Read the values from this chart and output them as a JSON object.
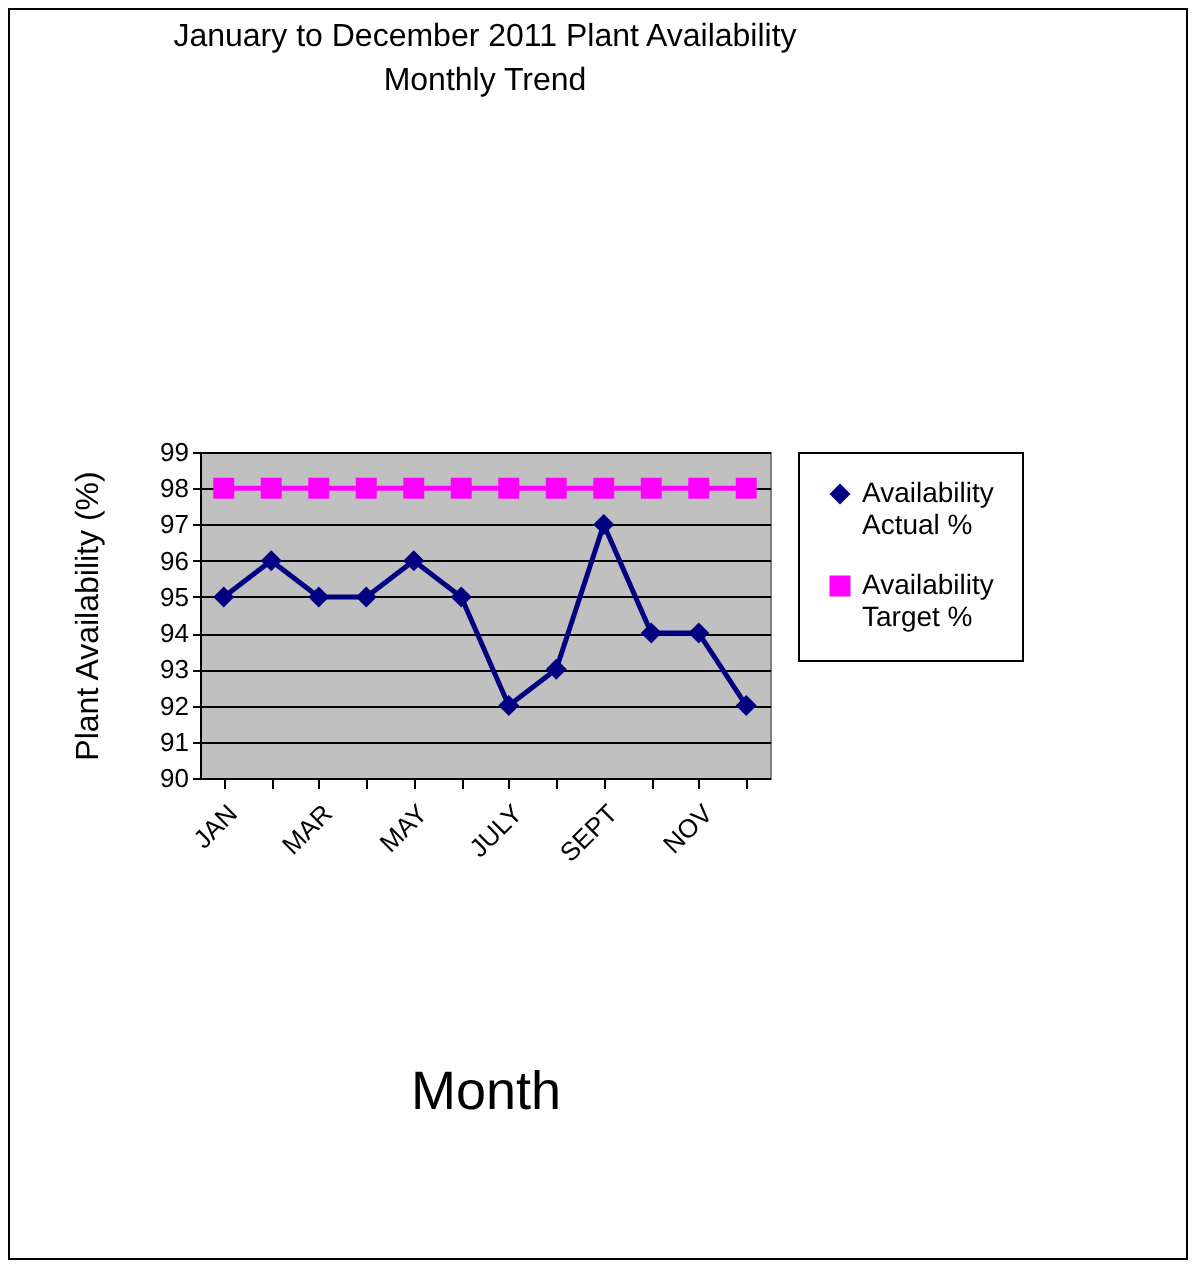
{
  "chart_data": {
    "type": "line",
    "title": [
      "January to December 2011 Plant Availability",
      "Monthly Trend"
    ],
    "xlabel": "Month",
    "ylabel": "Plant Availability (%)",
    "categories": [
      "JAN",
      null,
      "MAR",
      null,
      "MAY",
      null,
      "JULY",
      null,
      "SEPT",
      null,
      "NOV",
      null
    ],
    "series": [
      {
        "name": "Availability Actual %",
        "color": "#000080",
        "marker": "diamond",
        "values": [
          95,
          96,
          95,
          95,
          96,
          95,
          92,
          93,
          97,
          94,
          94,
          92
        ]
      },
      {
        "name": "Availability Target %",
        "color": "#ff00ff",
        "marker": "square",
        "values": [
          98,
          98,
          98,
          98,
          98,
          98,
          98,
          98,
          98,
          98,
          98,
          98
        ]
      }
    ],
    "ylim": [
      90,
      99
    ],
    "yticks": [
      90,
      91,
      92,
      93,
      94,
      95,
      96,
      97,
      98,
      99
    ],
    "grid": "y",
    "legend": "right"
  }
}
